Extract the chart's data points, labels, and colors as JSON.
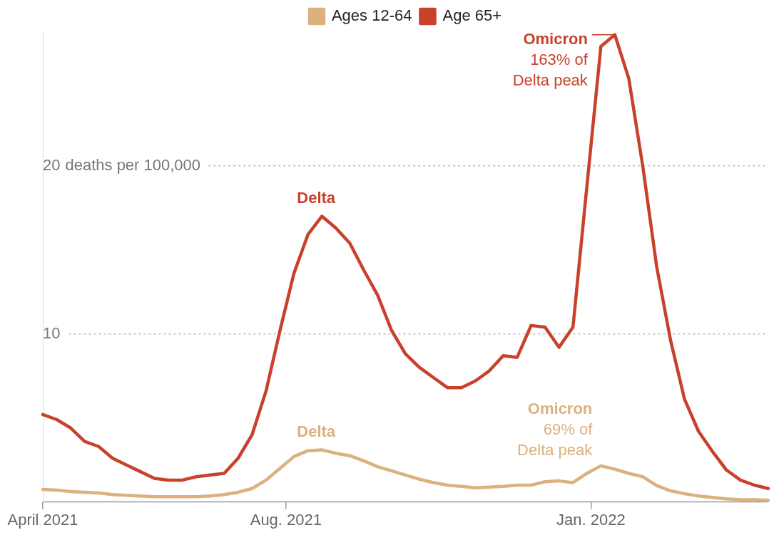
{
  "chart_data": {
    "type": "line",
    "x": [
      "2021-04-01",
      "2021-04-08",
      "2021-04-15",
      "2021-04-22",
      "2021-04-29",
      "2021-05-06",
      "2021-05-13",
      "2021-05-20",
      "2021-05-27",
      "2021-06-03",
      "2021-06-10",
      "2021-06-17",
      "2021-06-24",
      "2021-07-01",
      "2021-07-08",
      "2021-07-15",
      "2021-07-22",
      "2021-07-29",
      "2021-08-05",
      "2021-08-12",
      "2021-08-19",
      "2021-08-26",
      "2021-09-02",
      "2021-09-09",
      "2021-09-16",
      "2021-09-23",
      "2021-09-30",
      "2021-10-07",
      "2021-10-14",
      "2021-10-21",
      "2021-10-28",
      "2021-11-04",
      "2021-11-11",
      "2021-11-18",
      "2021-11-25",
      "2021-12-02",
      "2021-12-09",
      "2021-12-16",
      "2021-12-23",
      "2021-12-30",
      "2022-01-06",
      "2022-01-13",
      "2022-01-20",
      "2022-01-27",
      "2022-02-03",
      "2022-02-10",
      "2022-02-17",
      "2022-02-24",
      "2022-03-03",
      "2022-03-10",
      "2022-03-17",
      "2022-03-24",
      "2022-03-31"
    ],
    "series": [
      {
        "name": "Ages 12-64",
        "color": "#dcb07f",
        "values": [
          0.75,
          0.7,
          0.62,
          0.58,
          0.53,
          0.44,
          0.4,
          0.35,
          0.31,
          0.31,
          0.31,
          0.31,
          0.35,
          0.44,
          0.58,
          0.8,
          1.3,
          2.0,
          2.7,
          3.05,
          3.1,
          2.9,
          2.75,
          2.45,
          2.1,
          1.85,
          1.6,
          1.35,
          1.15,
          1.0,
          0.93,
          0.84,
          0.88,
          0.93,
          1.0,
          1.0,
          1.2,
          1.25,
          1.15,
          1.7,
          2.15,
          1.95,
          1.7,
          1.5,
          0.97,
          0.66,
          0.49,
          0.35,
          0.27,
          0.18,
          0.13,
          0.13,
          0.1
        ]
      },
      {
        "name": "Age 65+",
        "color": "#c8412b",
        "values": [
          5.2,
          4.9,
          4.4,
          3.6,
          3.3,
          2.6,
          2.2,
          1.8,
          1.4,
          1.3,
          1.3,
          1.5,
          1.6,
          1.7,
          2.6,
          4.0,
          6.6,
          10.2,
          13.6,
          15.9,
          17.0,
          16.3,
          15.4,
          13.8,
          12.3,
          10.2,
          8.8,
          8.0,
          7.4,
          6.8,
          6.8,
          7.2,
          7.8,
          8.7,
          8.6,
          10.5,
          10.4,
          9.2,
          10.4,
          18.8,
          27.1,
          27.8,
          25.2,
          20.0,
          14.0,
          9.6,
          6.1,
          4.2,
          3.0,
          1.9,
          1.3,
          1.0,
          0.8
        ]
      }
    ],
    "xlim": [
      "2021-04-01",
      "2022-03-31"
    ],
    "xticks": [
      {
        "value": "2021-04-01",
        "label": "April 2021"
      },
      {
        "value": "2021-08-01",
        "label": "Aug. 2021"
      },
      {
        "value": "2022-01-01",
        "label": "Jan. 2022"
      }
    ],
    "ylim": [
      0,
      28
    ],
    "yticks": [
      10,
      20
    ],
    "ylabel": "deaths per 100,000",
    "grid": "y",
    "legend": "top",
    "marker": "none",
    "line_style": "solid",
    "annotations": [
      {
        "text": "Delta",
        "x": "2021-08-19",
        "y": 17.0
      },
      {
        "text": "Omicron\n163% of\nDelta peak",
        "x": "2022-01-13",
        "y": 27.8
      },
      {
        "text": "Delta",
        "x": "2021-08-19",
        "y": 3.1
      },
      {
        "text": "Omicron\n69% of\nDelta peak",
        "x": "2022-01-06",
        "y": 2.15
      }
    ]
  }
}
